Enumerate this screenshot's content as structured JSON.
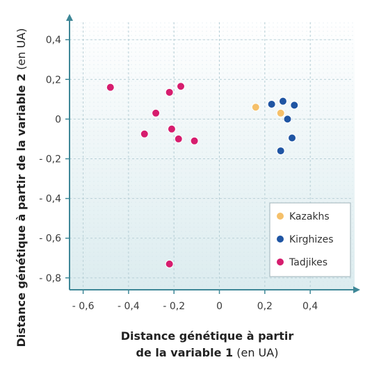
{
  "chart_data": {
    "type": "scatter",
    "xlabel_bold_line1": "Distance génétique à partir",
    "xlabel_bold_line2": "de la variable 1",
    "xlabel_unit": " (en UA)",
    "ylabel_bold": "Distance génétique à partir de la variable 2",
    "ylabel_unit": " (en UA)",
    "xlim": [
      -0.66,
      0.62
    ],
    "ylim": [
      -0.86,
      0.53
    ],
    "x_ticks": [
      {
        "value": -0.6,
        "label": "- 0,6"
      },
      {
        "value": -0.4,
        "label": "- 0,4"
      },
      {
        "value": -0.2,
        "label": "- 0,2"
      },
      {
        "value": 0,
        "label": "0"
      },
      {
        "value": 0.2,
        "label": "0,2"
      },
      {
        "value": 0.4,
        "label": "0,4"
      }
    ],
    "y_ticks": [
      {
        "value": 0.4,
        "label": "0,4"
      },
      {
        "value": 0.2,
        "label": "0,2"
      },
      {
        "value": 0,
        "label": "0"
      },
      {
        "value": -0.2,
        "label": "- 0,2"
      },
      {
        "value": -0.4,
        "label": "- 0,4"
      },
      {
        "value": -0.6,
        "label": "- 0,6"
      },
      {
        "value": -0.8,
        "label": "- 0,8"
      }
    ],
    "grid": true,
    "legend_position": "bottom-right",
    "series": [
      {
        "name": "Kazakhs",
        "color": "#f5c06a",
        "points": [
          [
            0.16,
            0.06
          ],
          [
            0.27,
            0.03
          ]
        ]
      },
      {
        "name": "Kirghizes",
        "color": "#1f55a3",
        "points": [
          [
            0.23,
            0.075
          ],
          [
            0.28,
            0.09
          ],
          [
            0.33,
            0.07
          ],
          [
            0.3,
            0.0
          ],
          [
            0.32,
            -0.095
          ],
          [
            0.27,
            -0.16
          ]
        ]
      },
      {
        "name": "Tadjikes",
        "color": "#d61d6e",
        "points": [
          [
            -0.48,
            0.16
          ],
          [
            -0.22,
            0.135
          ],
          [
            -0.17,
            0.165
          ],
          [
            -0.28,
            0.03
          ],
          [
            -0.33,
            -0.075
          ],
          [
            -0.21,
            -0.05
          ],
          [
            -0.18,
            -0.1
          ],
          [
            -0.11,
            -0.11
          ],
          [
            -0.22,
            -0.73
          ]
        ]
      }
    ]
  }
}
